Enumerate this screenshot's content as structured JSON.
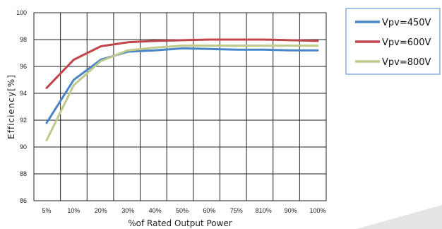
{
  "chart_data": {
    "type": "line",
    "title": "",
    "xlabel": "%of Rated Output Power",
    "ylabel": "Efficiency[%]",
    "categories": [
      "5%",
      "10%",
      "20%",
      "30%",
      "40%",
      "50%",
      "60%",
      "75%",
      "810%",
      "90%",
      "100%"
    ],
    "ylim": [
      86,
      100
    ],
    "yticks": [
      86,
      88,
      90,
      92,
      94,
      96,
      98,
      100
    ],
    "grid": true,
    "legend_position": "right",
    "series": [
      {
        "name": "Vpv=450V",
        "color": "#4a86c5",
        "values": [
          91.8,
          95.0,
          96.5,
          97.1,
          97.2,
          97.35,
          97.3,
          97.25,
          97.25,
          97.2,
          97.2
        ]
      },
      {
        "name": "Vpv=600V",
        "color": "#c0444a",
        "values": [
          94.4,
          96.5,
          97.5,
          97.8,
          97.9,
          97.95,
          98.0,
          98.0,
          98.0,
          97.95,
          97.9
        ]
      },
      {
        "name": "Vpv=800V",
        "color": "#bfc98a",
        "values": [
          90.5,
          94.6,
          96.4,
          97.2,
          97.4,
          97.55,
          97.55,
          97.55,
          97.55,
          97.55,
          97.55
        ]
      }
    ]
  }
}
